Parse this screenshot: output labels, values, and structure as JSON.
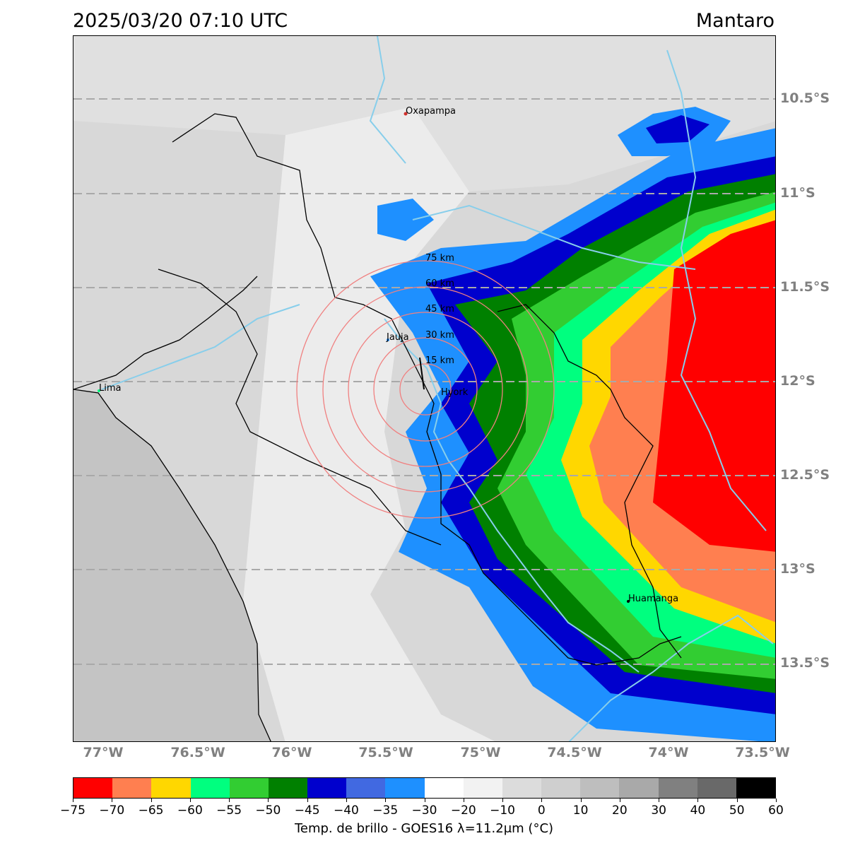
{
  "header": {
    "timestamp": "2025/03/20 07:10 UTC",
    "region": "Mantaro"
  },
  "map": {
    "latitude_labels": [
      "10.5°S",
      "11°S",
      "11.5°S",
      "12°S",
      "12.5°S",
      "13°S",
      "13.5°S"
    ],
    "longitude_labels": [
      "77°W",
      "76.5°W",
      "76°W",
      "75.5°W",
      "75°W",
      "74.5°W",
      "74°W",
      "73.5°W"
    ],
    "cities": {
      "oxapampa": "Oxapampa",
      "jauja": "Jauja",
      "huayao": "Hyork",
      "lima": "Lima",
      "huamanga": "Huamanga"
    },
    "range_rings": [
      "75 km",
      "60 km",
      "45 km",
      "30 km",
      "15 km"
    ],
    "colors": {
      "ring": "#f08080",
      "gridline": "#a9a9a9",
      "river": "#87ceeb",
      "border": "#000000",
      "ocean": "#bdbdbd"
    }
  },
  "colorbar": {
    "label": "Temp. de brillo - GOES16 λ=11.2μm (°C)",
    "ticks": [
      "−75",
      "−70",
      "−65",
      "−60",
      "−55",
      "−50",
      "−45",
      "−40",
      "−35",
      "−30",
      "−20",
      "−10",
      "0",
      "10",
      "20",
      "30",
      "40",
      "50",
      "60"
    ],
    "colors": [
      "#ff0000",
      "#ff7f50",
      "#ffd700",
      "#00ff7f",
      "#32cd32",
      "#008000",
      "#0000cd",
      "#4169e1",
      "#1e90ff",
      "#ffffff",
      "#f2f2f2",
      "#dcdcdc",
      "#cfcfcf",
      "#bebebe",
      "#a9a9a9",
      "#808080",
      "#696969",
      "#000000"
    ]
  }
}
